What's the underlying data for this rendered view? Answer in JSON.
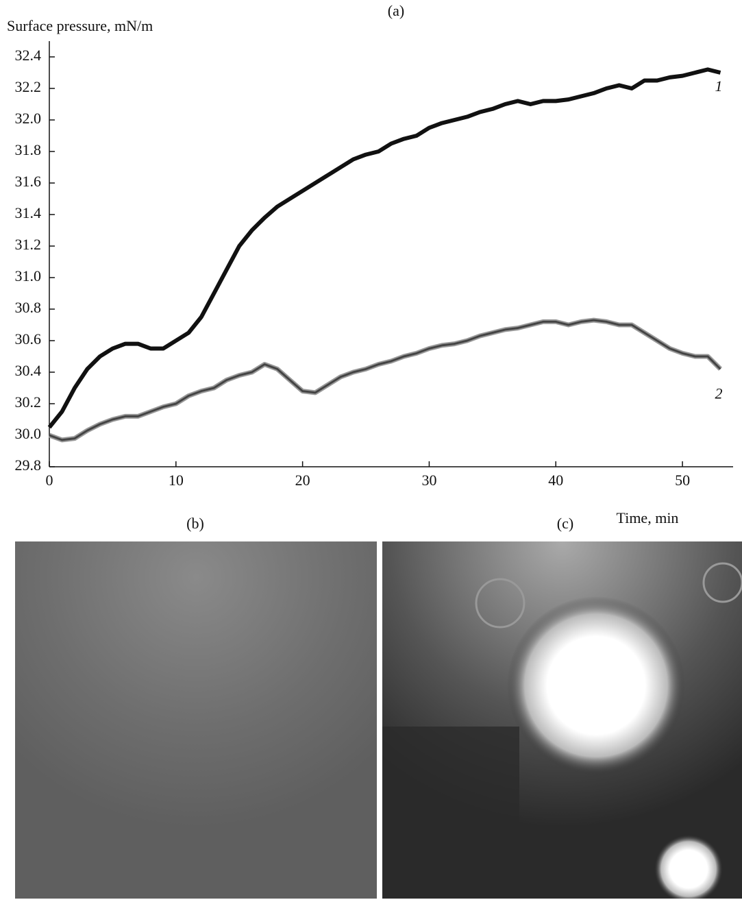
{
  "chart_data": {
    "type": "line",
    "title": "(a)",
    "y_label": "Surface pressure, mN/m",
    "x_label": "Time, min",
    "x": [
      0,
      1,
      2,
      3,
      4,
      5,
      6,
      7,
      8,
      9,
      10,
      11,
      12,
      13,
      14,
      15,
      16,
      17,
      18,
      19,
      20,
      21,
      22,
      23,
      24,
      25,
      26,
      27,
      28,
      29,
      30,
      31,
      32,
      33,
      34,
      35,
      36,
      37,
      38,
      39,
      40,
      41,
      42,
      43,
      44,
      45,
      46,
      47,
      48,
      49,
      50,
      51,
      52,
      53
    ],
    "series": [
      {
        "name": "1",
        "color": "#111111",
        "values": [
          30.05,
          30.15,
          30.3,
          30.42,
          30.5,
          30.55,
          30.58,
          30.58,
          30.55,
          30.55,
          30.6,
          30.65,
          30.75,
          30.9,
          31.05,
          31.2,
          31.3,
          31.38,
          31.45,
          31.5,
          31.55,
          31.6,
          31.65,
          31.7,
          31.75,
          31.78,
          31.8,
          31.85,
          31.88,
          31.9,
          31.95,
          31.98,
          32.0,
          32.02,
          32.05,
          32.07,
          32.1,
          32.12,
          32.1,
          32.12,
          32.12,
          32.13,
          32.15,
          32.17,
          32.2,
          32.22,
          32.2,
          32.25,
          32.25,
          32.27,
          32.28,
          32.3,
          32.32,
          32.3
        ]
      },
      {
        "name": "2",
        "color": "#444444",
        "values": [
          30.0,
          29.97,
          29.98,
          30.03,
          30.07,
          30.1,
          30.12,
          30.12,
          30.15,
          30.18,
          30.2,
          30.25,
          30.28,
          30.3,
          30.35,
          30.38,
          30.4,
          30.45,
          30.42,
          30.35,
          30.28,
          30.27,
          30.32,
          30.37,
          30.4,
          30.42,
          30.45,
          30.47,
          30.5,
          30.52,
          30.55,
          30.57,
          30.58,
          30.6,
          30.63,
          30.65,
          30.67,
          30.68,
          30.7,
          30.72,
          30.72,
          30.7,
          30.72,
          30.73,
          30.72,
          30.7,
          30.7,
          30.65,
          30.6,
          30.55,
          30.52,
          30.5,
          30.5,
          30.42
        ]
      }
    ],
    "xlim": [
      0,
      54
    ],
    "xticks": [
      0,
      10,
      20,
      30,
      40,
      50
    ],
    "ylim": [
      29.8,
      32.5
    ],
    "yticks": [
      29.8,
      {
        "value": 30,
        "label": "30.0"
      },
      30.2,
      30.4,
      30.6,
      30.8,
      {
        "value": 31,
        "label": "31.0"
      },
      31.2,
      31.4,
      31.6,
      31.8,
      {
        "value": 32,
        "label": "32.0"
      },
      32.2,
      32.4
    ],
    "grid": false
  },
  "images": [
    {
      "caption": "(b)"
    },
    {
      "caption": "(c)"
    }
  ]
}
